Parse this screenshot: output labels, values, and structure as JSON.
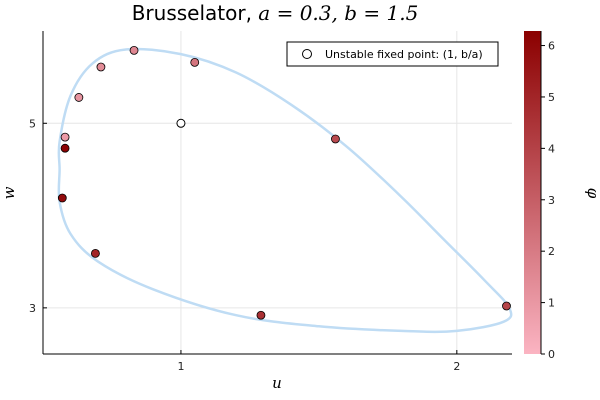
{
  "chart_data": {
    "type": "scatter",
    "title": "Brusselator, a = 0.3, b = 1.5",
    "title_parts": {
      "name": "Brusselator, ",
      "params": "a = 0.3, b = 1.5"
    },
    "xlabel": "u",
    "ylabel": "w",
    "xlim": [
      0.5,
      2.2
    ],
    "ylim": [
      2.5,
      6.0
    ],
    "xticks": [
      "1",
      "2"
    ],
    "yticks": [
      "5",
      "3"
    ],
    "grid": true,
    "legend_position": "top-right",
    "colorbar": {
      "label": "φ",
      "range": [
        0,
        6.283
      ],
      "ticks": [
        "0",
        "1",
        "2",
        "3",
        "4",
        "5",
        "6"
      ],
      "color_low": "#fbb4c2",
      "color_high": "#8b0000"
    },
    "limit_cycle_color": "#bfdcf4",
    "limit_cycle": [
      [
        0.56,
        4.5
      ],
      [
        0.56,
        4.8
      ],
      [
        0.6,
        5.3
      ],
      [
        0.68,
        5.65
      ],
      [
        0.8,
        5.8
      ],
      [
        1.0,
        5.75
      ],
      [
        1.2,
        5.55
      ],
      [
        1.4,
        5.2
      ],
      [
        1.6,
        4.75
      ],
      [
        1.8,
        4.2
      ],
      [
        1.95,
        3.75
      ],
      [
        2.1,
        3.3
      ],
      [
        2.19,
        3.0
      ],
      [
        2.17,
        2.85
      ],
      [
        2.0,
        2.75
      ],
      [
        1.8,
        2.75
      ],
      [
        1.5,
        2.8
      ],
      [
        1.2,
        2.92
      ],
      [
        0.9,
        3.2
      ],
      [
        0.7,
        3.5
      ],
      [
        0.6,
        3.8
      ],
      [
        0.56,
        4.15
      ]
    ],
    "series": [
      {
        "name": "Unstable fixed point: (1, b/a)",
        "type": "fixed_point",
        "x": [
          1.0
        ],
        "y": [
          5.0
        ]
      },
      {
        "type": "phase_points",
        "points": [
          {
            "x": 0.58,
            "y": 4.85,
            "phase": 0.9
          },
          {
            "x": 0.63,
            "y": 5.28,
            "phase": 1.1
          },
          {
            "x": 0.71,
            "y": 5.61,
            "phase": 1.4
          },
          {
            "x": 0.83,
            "y": 5.79,
            "phase": 1.6
          },
          {
            "x": 1.05,
            "y": 5.66,
            "phase": 2.2
          },
          {
            "x": 1.56,
            "y": 4.83,
            "phase": 3.7
          },
          {
            "x": 2.18,
            "y": 3.02,
            "phase": 3.9
          },
          {
            "x": 1.29,
            "y": 2.92,
            "phase": 4.6
          },
          {
            "x": 0.69,
            "y": 3.59,
            "phase": 5.0
          },
          {
            "x": 0.57,
            "y": 4.19,
            "phase": 5.9
          },
          {
            "x": 0.58,
            "y": 4.73,
            "phase": 6.2
          }
        ]
      }
    ]
  }
}
